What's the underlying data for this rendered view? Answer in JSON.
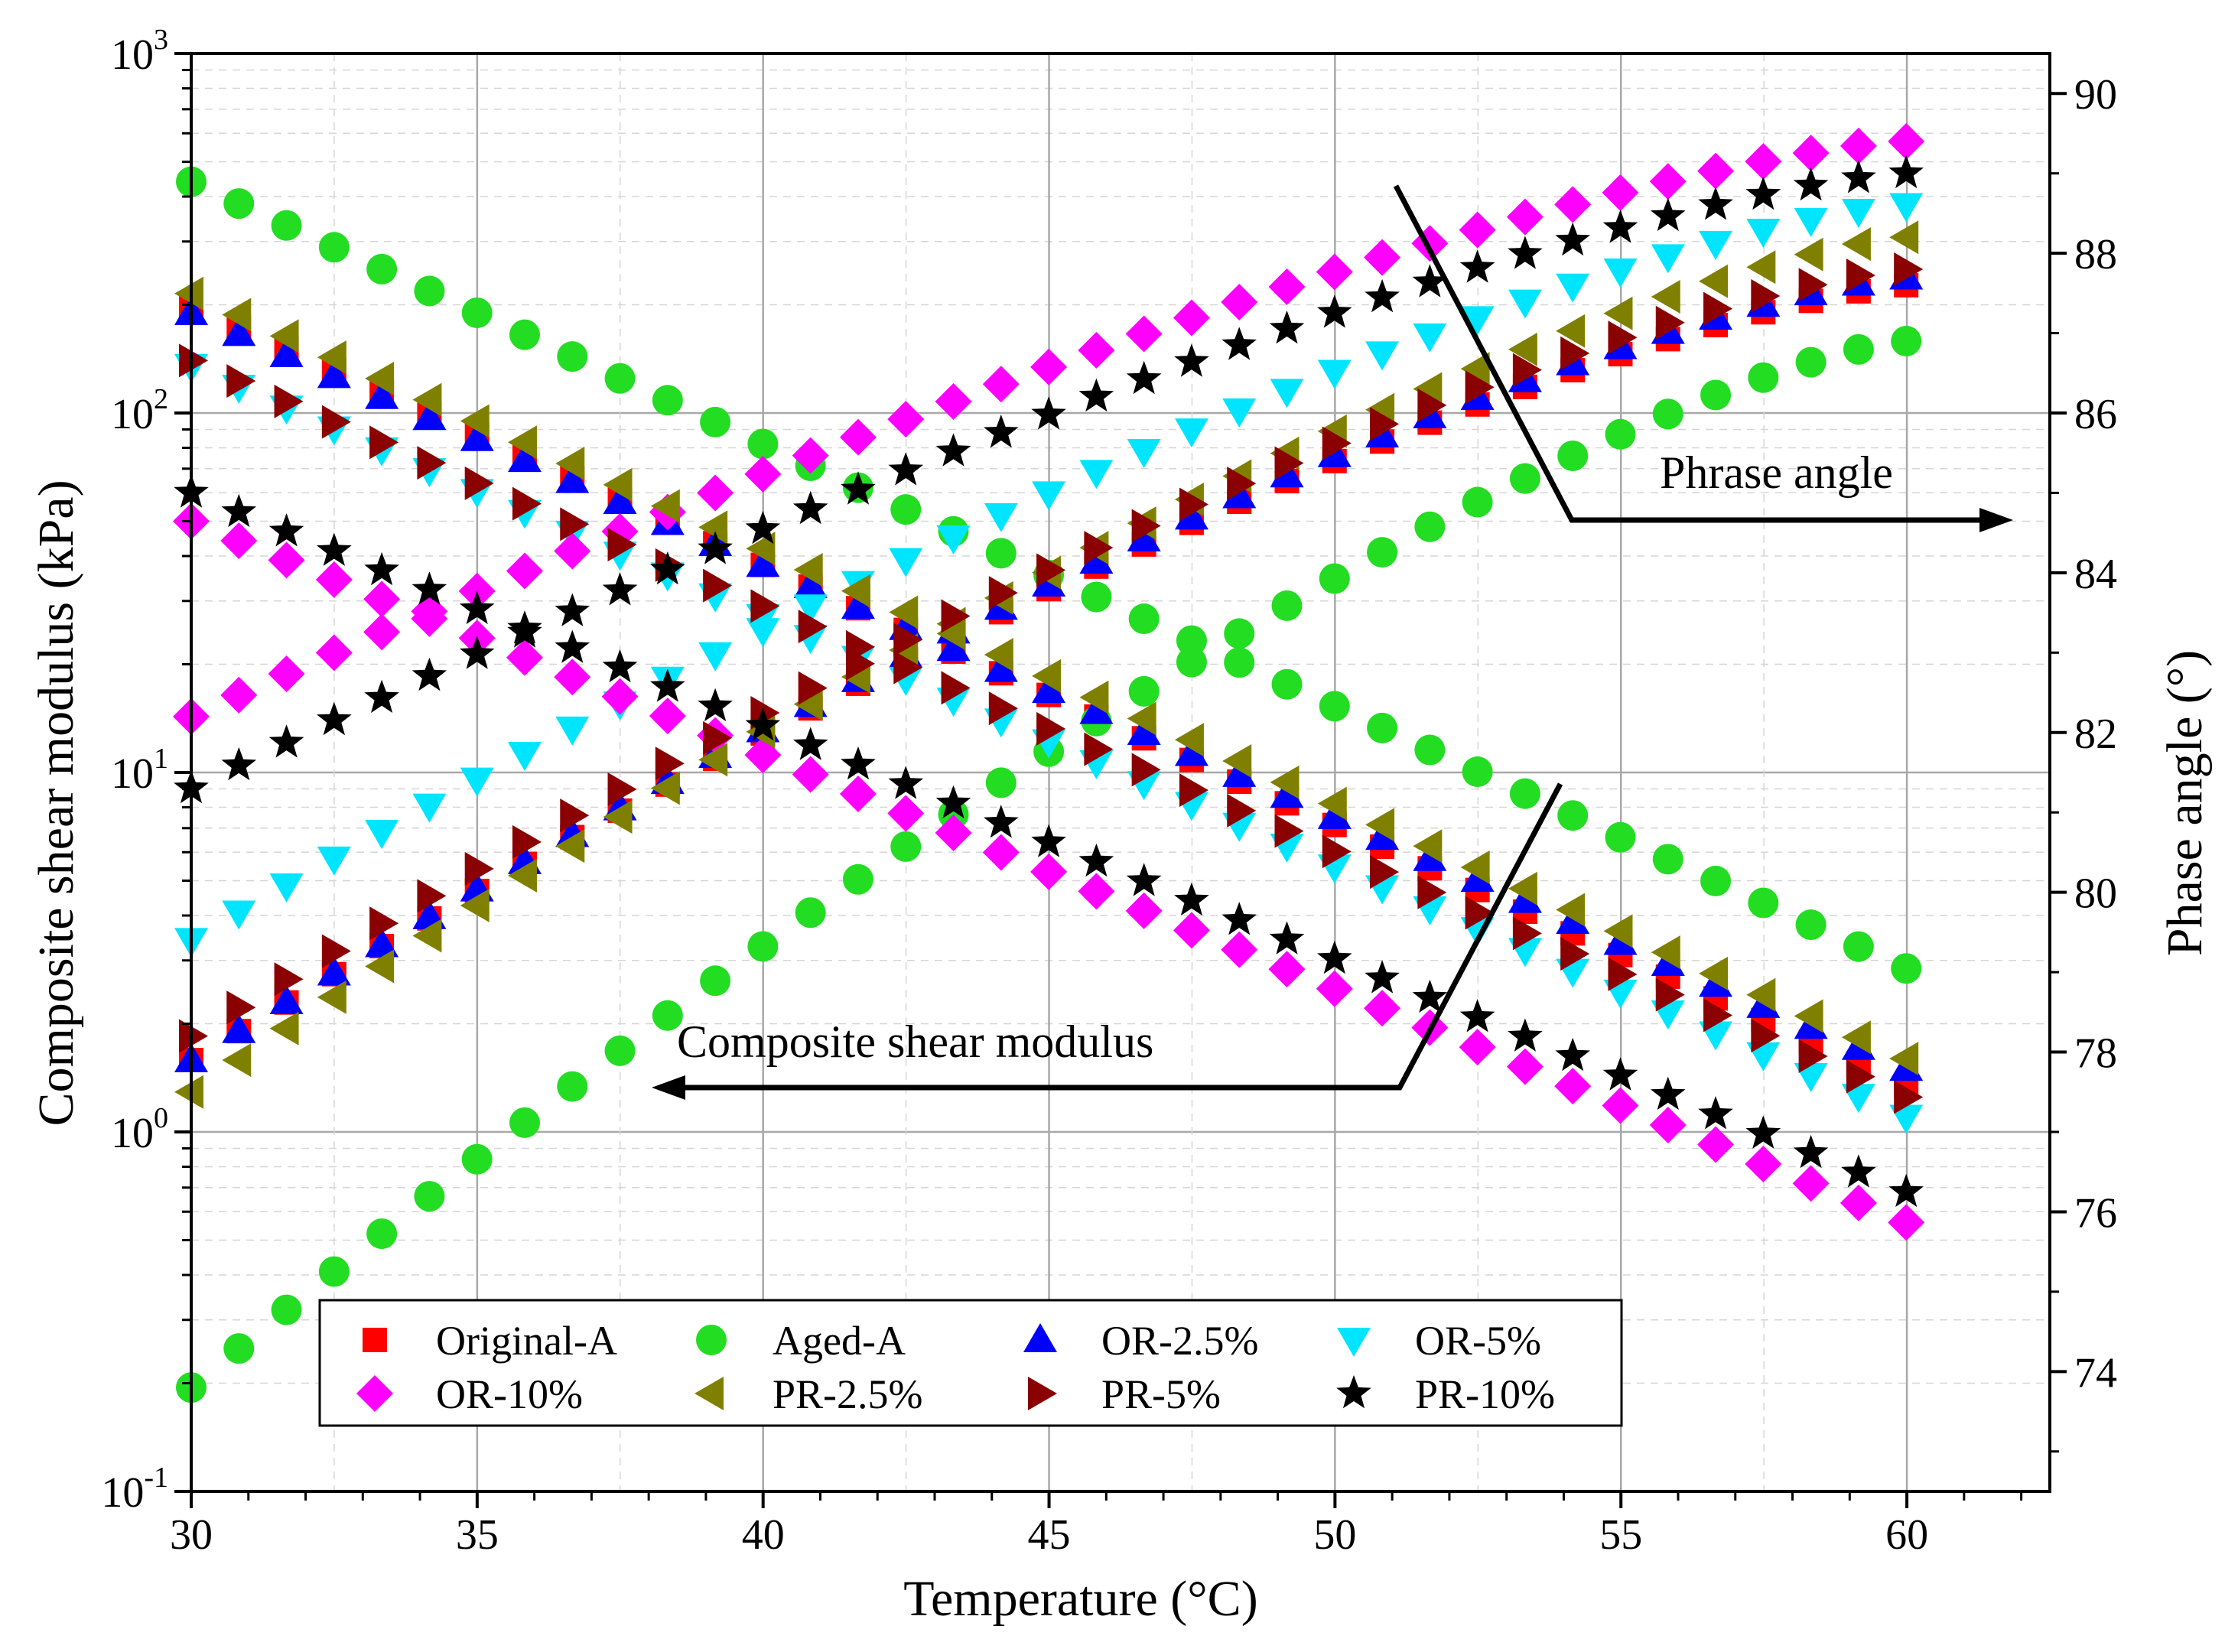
{
  "chart_data": {
    "type": "scatter",
    "xlabel": "Temperature (°C)",
    "ylabel_left": "Composite shear modulus (kPa)",
    "ylabel_right": "Phase angle (°)",
    "xlim": [
      30,
      62.5
    ],
    "xticks": [
      30,
      35,
      40,
      45,
      50,
      55,
      60
    ],
    "ylim_left_log10": [
      -1,
      3
    ],
    "yticks_left": [
      {
        "base": "10",
        "exp": "-1"
      },
      {
        "base": "10",
        "exp": "0"
      },
      {
        "base": "10",
        "exp": "1"
      },
      {
        "base": "10",
        "exp": "2"
      },
      {
        "base": "10",
        "exp": "3"
      }
    ],
    "ylim_right": [
      72.5,
      90.5
    ],
    "yticks_right": [
      74,
      76,
      78,
      80,
      82,
      84,
      86,
      88,
      90
    ],
    "annotations": {
      "phase": "Phrase angle",
      "modulus": "Composite shear modulus"
    },
    "series": [
      {
        "name": "Original-A",
        "color": "#ff0000",
        "marker": "square",
        "modulus": {
          "start": 200,
          "end": 1.35
        },
        "phase": {
          "start": 77.9,
          "end": 87.6
        }
      },
      {
        "name": "Aged-A",
        "color": "#22dd22",
        "marker": "circle",
        "modulus": {
          "start": 440,
          "end": 2.85
        },
        "phase": {
          "start": 73.8,
          "end": 86.9
        }
      },
      {
        "name": "OR-2.5%",
        "color": "#0000ff",
        "marker": "triangle-up",
        "modulus": {
          "start": 190,
          "end": 1.5
        },
        "phase": {
          "start": 77.9,
          "end": 87.7
        }
      },
      {
        "name": "OR-5%",
        "color": "#00e5ff",
        "marker": "triangle-down",
        "modulus": {
          "start": 135,
          "end": 1.1
        },
        "phase": {
          "start": 79.4,
          "end": 88.6
        }
      },
      {
        "name": "OR-10%",
        "color": "#ff00ff",
        "marker": "diamond",
        "modulus": {
          "start": 50,
          "end": 0.56
        },
        "phase": {
          "start": 82.2,
          "end": 89.4
        }
      },
      {
        "name": "PR-2.5%",
        "color": "#808000",
        "marker": "triangle-left",
        "modulus": {
          "start": 215,
          "end": 1.6
        },
        "phase": {
          "start": 77.5,
          "end": 88.2
        }
      },
      {
        "name": "PR-5%",
        "color": "#8b0000",
        "marker": "triangle-right",
        "modulus": {
          "start": 140,
          "end": 1.25
        },
        "phase": {
          "start": 78.2,
          "end": 87.8
        }
      },
      {
        "name": "PR-10%",
        "color": "#000000",
        "marker": "star",
        "modulus": {
          "start": 60,
          "end": 0.68
        },
        "phase": {
          "start": 81.3,
          "end": 89.0
        }
      }
    ],
    "points_per_series": 37,
    "x_step": 0.833,
    "legend": {
      "location": "bottom-left",
      "columns": 4
    }
  }
}
